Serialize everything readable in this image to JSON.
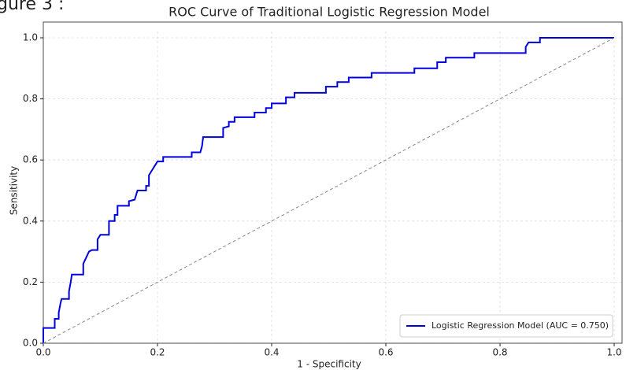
{
  "figure_label": "gure 3 :",
  "chart_data": {
    "type": "line",
    "title": "ROC Curve of Traditional Logistic Regression Model",
    "xlabel": "1 - Specificity",
    "ylabel": "Sensitivity",
    "xlim": [
      0,
      1
    ],
    "ylim": [
      0,
      1
    ],
    "xticks": [
      {
        "value": 0,
        "label": "0.0"
      },
      0.2,
      0.4,
      0.6,
      0.8,
      {
        "value": 1,
        "label": "1.0"
      }
    ],
    "yticks": [
      {
        "value": 0,
        "label": "0.0"
      },
      0.2,
      0.4,
      0.6,
      0.8,
      {
        "value": 1,
        "label": "1.0"
      }
    ],
    "grid": true,
    "legend": "lower right",
    "series": [
      {
        "name": "Logistic Regression Model (AUC = 0.750)",
        "color": "#0000dd",
        "x": [
          0,
          0,
          0.02,
          0.02,
          0.027,
          0.027,
          0.03,
          0.032,
          0.045,
          0.045,
          0.048,
          0.05,
          0.07,
          0.07,
          0.075,
          0.08,
          0.085,
          0.095,
          0.095,
          0.1,
          0.115,
          0.115,
          0.125,
          0.125,
          0.13,
          0.13,
          0.15,
          0.15,
          0.16,
          0.165,
          0.18,
          0.18,
          0.185,
          0.185,
          0.19,
          0.195,
          0.2,
          0.21,
          0.21,
          0.26,
          0.26,
          0.275,
          0.278,
          0.28,
          0.315,
          0.315,
          0.325,
          0.325,
          0.335,
          0.335,
          0.37,
          0.37,
          0.39,
          0.39,
          0.4,
          0.4,
          0.425,
          0.425,
          0.44,
          0.44,
          0.495,
          0.495,
          0.515,
          0.515,
          0.535,
          0.535,
          0.575,
          0.575,
          0.65,
          0.65,
          0.69,
          0.69,
          0.705,
          0.705,
          0.755,
          0.755,
          0.845,
          0.845,
          0.85,
          0.87,
          0.87,
          1.0
        ],
        "values": [
          0,
          0.05,
          0.05,
          0.08,
          0.08,
          0.1,
          0.13,
          0.145,
          0.145,
          0.17,
          0.2,
          0.225,
          0.225,
          0.26,
          0.28,
          0.3,
          0.305,
          0.305,
          0.34,
          0.355,
          0.355,
          0.4,
          0.4,
          0.42,
          0.42,
          0.45,
          0.45,
          0.465,
          0.47,
          0.5,
          0.5,
          0.515,
          0.515,
          0.55,
          0.565,
          0.58,
          0.595,
          0.595,
          0.61,
          0.61,
          0.625,
          0.625,
          0.645,
          0.675,
          0.675,
          0.705,
          0.71,
          0.725,
          0.725,
          0.74,
          0.74,
          0.755,
          0.755,
          0.77,
          0.77,
          0.785,
          0.785,
          0.805,
          0.805,
          0.82,
          0.82,
          0.84,
          0.84,
          0.855,
          0.855,
          0.87,
          0.87,
          0.885,
          0.885,
          0.9,
          0.9,
          0.92,
          0.92,
          0.935,
          0.935,
          0.95,
          0.95,
          0.97,
          0.985,
          0.985,
          1.0,
          1.0
        ]
      },
      {
        "color": "#888888",
        "dashed": true,
        "x": [
          0,
          1
        ],
        "values": [
          0,
          1
        ]
      }
    ]
  }
}
